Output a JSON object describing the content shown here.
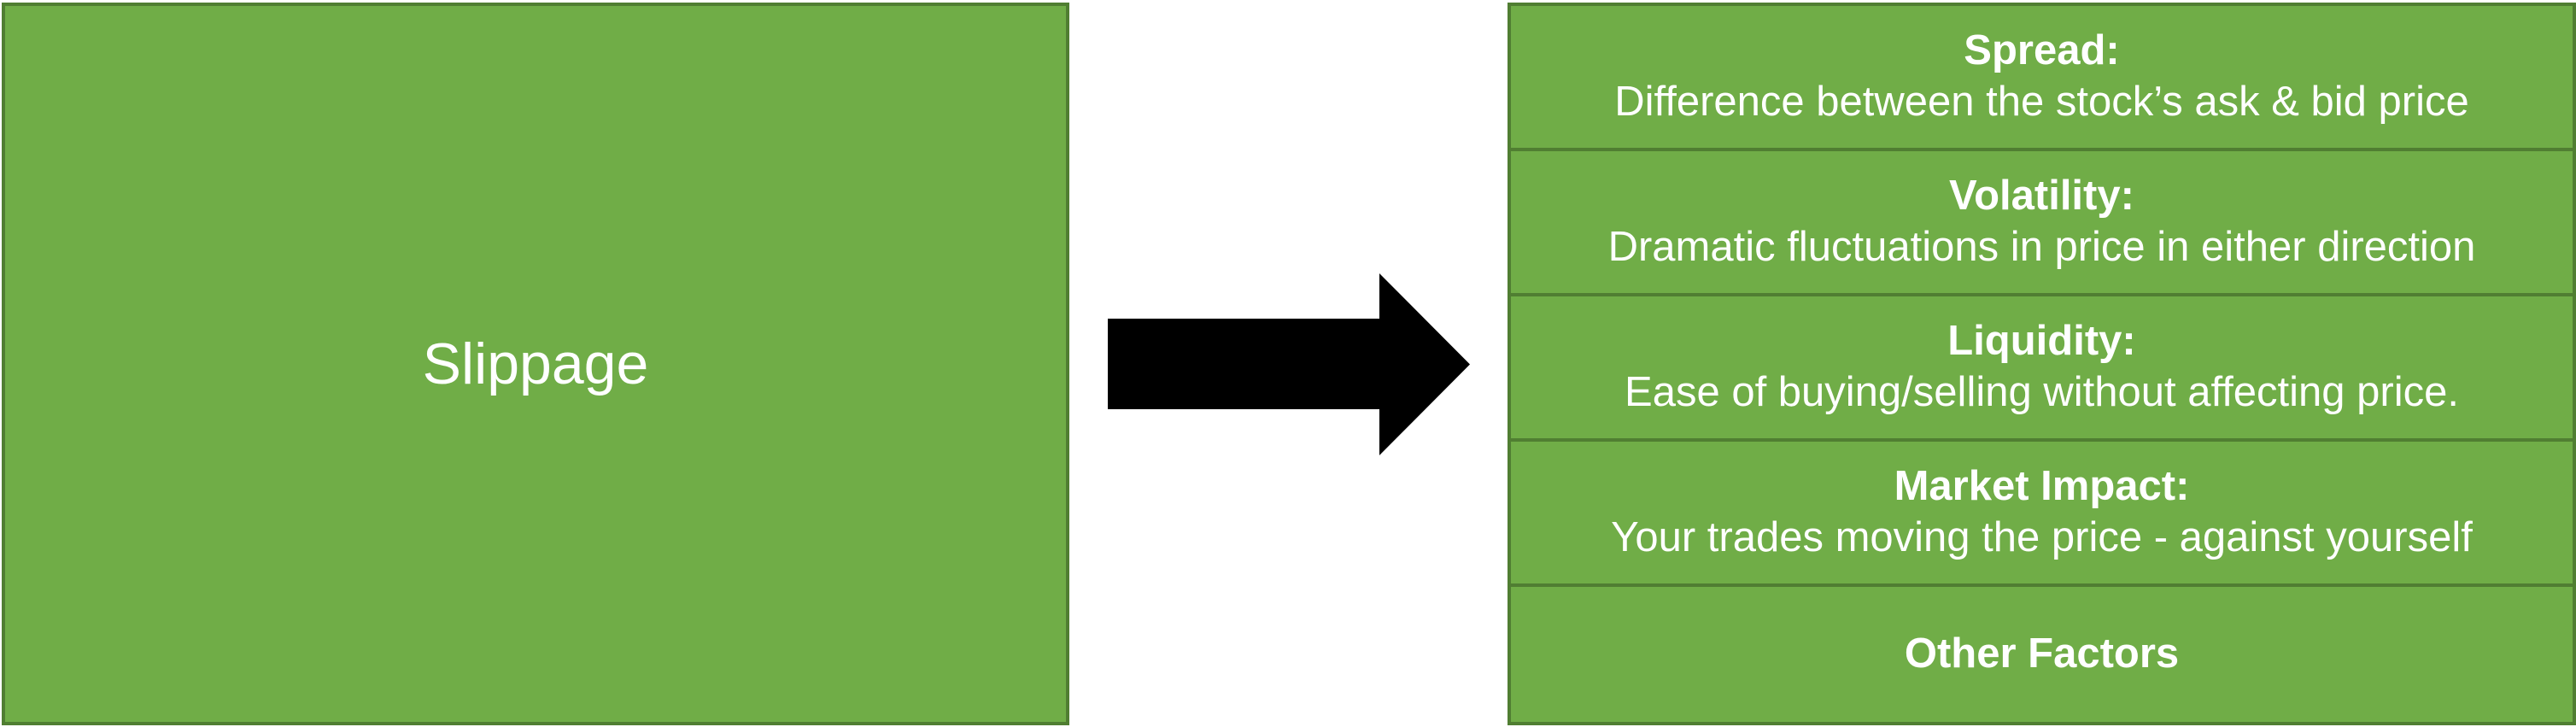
{
  "main": {
    "label": "Slippage",
    "color": "#70ad47",
    "border_color": "#507e32"
  },
  "arrow": {
    "icon": "right-arrow-icon",
    "color": "#000000"
  },
  "factors": [
    {
      "title": "Spread:",
      "description": "Difference between the stock’s ask & bid price"
    },
    {
      "title": "Volatility:",
      "description": "Dramatic fluctuations in price in either direction"
    },
    {
      "title": "Liquidity:",
      "description": "Ease of buying/selling without affecting price."
    },
    {
      "title": "Market Impact:",
      "description": "Your trades moving the price - against yourself"
    },
    {
      "title": "Other Factors"
    }
  ]
}
